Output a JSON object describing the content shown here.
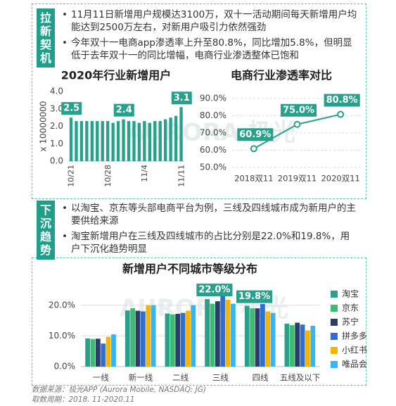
{
  "sections": [
    {
      "label": "拉新契机",
      "bullets": [
        "11月11日新增用户规模达3100万，双十一活动期间每天新增用户均能达到2500万左右，对新用户吸引力依然强劲",
        "今年双十一电商app渗透率上升至80.8%，同比增加5.8%，但明显低于去年双十一的同比增幅，电商行业渗透整体已饱和"
      ]
    },
    {
      "label": "下沉趋势",
      "bullets": [
        "以淘宝、京东等头部电商平台为例，三线及四线城市成为新用户的主要供给来源",
        "淘宝新增用户在三线及四线城市的占比分别是22.0%和19.8%，用户下沉化趋势明显"
      ]
    }
  ],
  "watermark": "AURORA 极光",
  "chart_data": [
    {
      "type": "bar",
      "title": "2020年行业新增用户",
      "y_label": "x 10000000",
      "color": "#27a08c",
      "grid": false,
      "categories": [
        "10/21",
        null,
        null,
        null,
        null,
        null,
        null,
        "10/28",
        null,
        null,
        null,
        null,
        null,
        null,
        "11/4",
        null,
        null,
        null,
        null,
        null,
        null,
        "11/11"
      ],
      "values": [
        2.5,
        2.3,
        2.3,
        2.3,
        2.3,
        2.3,
        2.3,
        2.3,
        2.2,
        2.3,
        2.4,
        2.3,
        2.3,
        2.2,
        2.3,
        2.2,
        2.3,
        2.3,
        2.4,
        2.5,
        2.6,
        3.1
      ],
      "value_labels": [
        "2.5",
        null,
        null,
        null,
        null,
        null,
        null,
        null,
        null,
        null,
        "2.4",
        null,
        null,
        null,
        null,
        null,
        null,
        null,
        null,
        null,
        null,
        "3.1"
      ],
      "ylim": [
        0,
        4
      ],
      "yticks": [
        {
          "value": 0,
          "label": "0.0"
        },
        {
          "value": 1,
          "label": "1.0"
        },
        {
          "value": 2,
          "label": "2.0"
        },
        {
          "value": 3,
          "label": "3.0"
        },
        {
          "value": 4,
          "label": "4.0"
        }
      ]
    },
    {
      "type": "line",
      "title": "电商行业渗透率对比",
      "color": "#27a08c",
      "grid": true,
      "categories": [
        "2018双11",
        "2019双11",
        "2020双11"
      ],
      "values": [
        60.9,
        75.0,
        80.8
      ],
      "value_labels": [
        "60.9%",
        "75.0%",
        "80.8%"
      ],
      "ylim": [
        50,
        90
      ],
      "yticks": [
        {
          "value": 50,
          "label": "50.0%"
        },
        {
          "value": 60,
          "label": "60.0%"
        },
        {
          "value": 70,
          "label": "70.0%"
        },
        {
          "value": 80,
          "label": "80.0%"
        },
        {
          "value": 90,
          "label": "90.0%"
        }
      ]
    },
    {
      "type": "bar",
      "title": "新增用户不同城市等级分布",
      "grid": true,
      "legend": "right",
      "categories": [
        "一线",
        "新一线",
        "二线",
        "三线",
        "四线",
        "五线及以下"
      ],
      "series": [
        {
          "name": "淘宝",
          "color": "#27a08c",
          "values": [
            9.2,
            18.3,
            17.3,
            22.0,
            19.8,
            14.0
          ],
          "value_labels": [
            null,
            null,
            null,
            "22.0%",
            "19.8%",
            null
          ]
        },
        {
          "name": "京东",
          "color": "#3dbb6f",
          "values": [
            9.0,
            19.0,
            17.0,
            20.5,
            19.0,
            13.5
          ]
        },
        {
          "name": "苏宁",
          "color": "#2c3c6b",
          "values": [
            9.1,
            18.2,
            17.2,
            21.3,
            19.0,
            14.3
          ]
        },
        {
          "name": "拼多多",
          "color": "#2f6fd1",
          "values": [
            7.5,
            18.0,
            17.5,
            24.0,
            20.4,
            13.7
          ]
        },
        {
          "name": "小红书",
          "color": "#f6b400",
          "values": [
            9.7,
            20.0,
            18.2,
            21.8,
            18.0,
            11.8
          ]
        },
        {
          "name": "唯品会",
          "color": "#35b6f0",
          "values": [
            10.5,
            20.0,
            20.0,
            20.5,
            17.5,
            13.3
          ]
        }
      ],
      "ylim": [
        0,
        25
      ],
      "yticks": [
        {
          "value": 0,
          "label": "0.0%"
        },
        {
          "value": 10,
          "label": "10.0%"
        },
        {
          "value": 20,
          "label": "20.0%"
        }
      ]
    }
  ],
  "footer": {
    "source": "数据来源：极光APP (Aurora Mobile, NASDAQ: JG)",
    "period": "取数周期：2018. 11-2020.11"
  }
}
